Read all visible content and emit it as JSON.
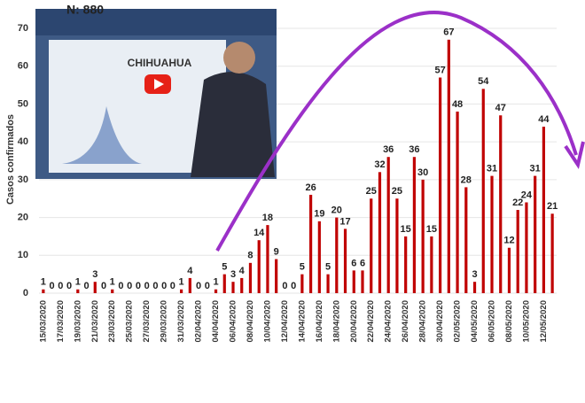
{
  "chart_data": {
    "type": "bar",
    "title": "N: 880",
    "y_label": "Casos confirmados",
    "video_caption": "CHIHUAHUA",
    "color": "#c00000",
    "grid": true,
    "ylim": [
      0,
      70
    ],
    "yticks": [
      0,
      10,
      20,
      30,
      40,
      50,
      60,
      70
    ],
    "categories": [
      "15/03/2020",
      null,
      "17/03/2020",
      null,
      "19/03/2020",
      null,
      "21/03/2020",
      null,
      "23/03/2020",
      null,
      "25/03/2020",
      null,
      "27/03/2020",
      null,
      "29/03/2020",
      null,
      "31/03/2020",
      null,
      "02/04/2020",
      null,
      "04/04/2020",
      null,
      "06/04/2020",
      null,
      "08/04/2020",
      null,
      "10/04/2020",
      null,
      "12/04/2020",
      null,
      "14/04/2020",
      null,
      "16/04/2020",
      null,
      "18/04/2020",
      null,
      "20/04/2020",
      null,
      "22/04/2020",
      null,
      "24/04/2020",
      null,
      "26/04/2020",
      null,
      "28/04/2020",
      null,
      "30/04/2020",
      null,
      "02/05/2020",
      null,
      "04/05/2020",
      null,
      "06/05/2020",
      null,
      "08/05/2020",
      null,
      "10/05/2020",
      null,
      "12/05/2020",
      null
    ],
    "values": [
      1,
      0,
      0,
      0,
      1,
      0,
      3,
      0,
      1,
      0,
      0,
      0,
      0,
      0,
      0,
      0,
      1,
      4,
      0,
      0,
      1,
      5,
      3,
      4,
      8,
      14,
      18,
      9,
      0,
      0,
      5,
      26,
      19,
      5,
      20,
      17,
      6,
      6,
      25,
      32,
      36,
      25,
      15,
      36,
      30,
      15,
      57,
      67,
      48,
      28,
      3,
      54,
      31,
      47,
      12,
      22,
      24,
      31,
      44,
      21
    ]
  }
}
